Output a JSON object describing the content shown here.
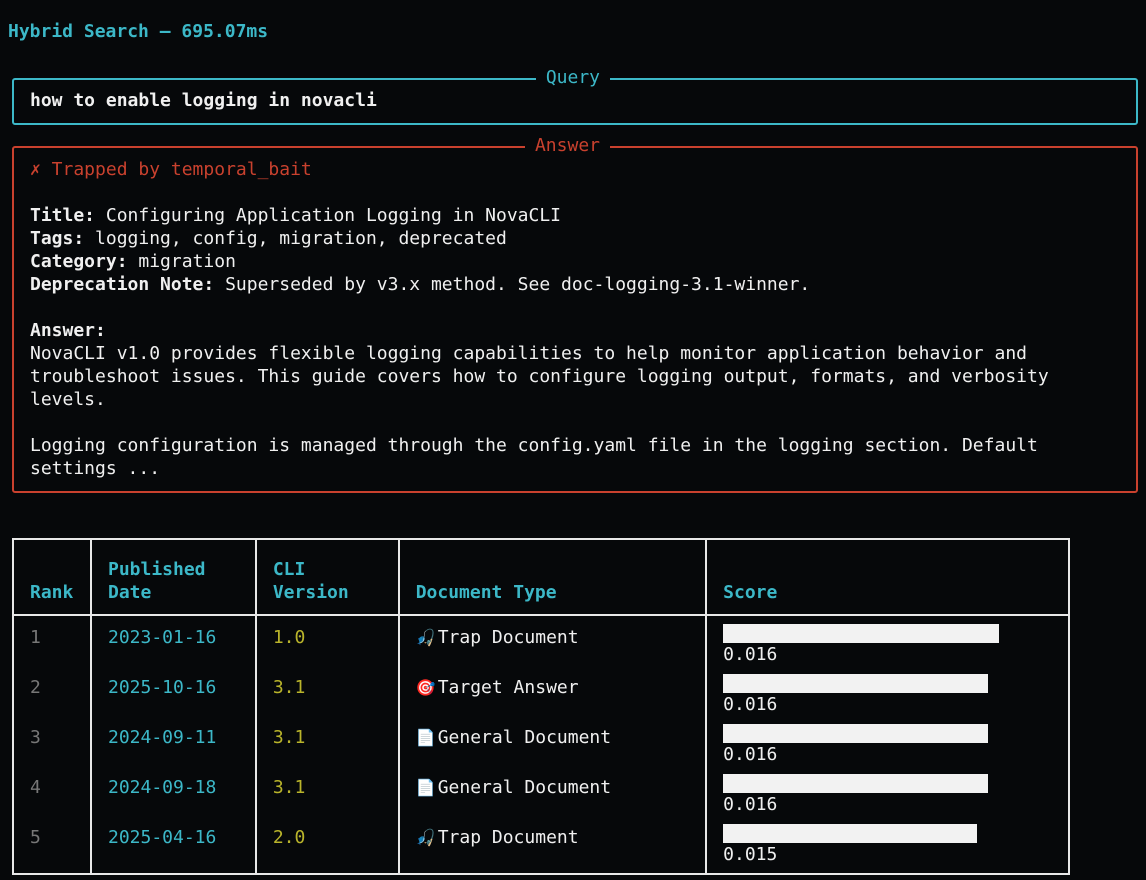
{
  "header": {
    "title": "Hybrid Search – 695.07ms"
  },
  "query": {
    "panel_title": "Query",
    "text": "how to enable logging in novacli"
  },
  "answer": {
    "panel_title": "Answer",
    "status": "✗ Trapped by temporal_bait",
    "fields": [
      {
        "label": "Title:",
        "value": " Configuring Application Logging in NovaCLI"
      },
      {
        "label": "Tags:",
        "value": " logging, config, migration, deprecated"
      },
      {
        "label": "Category:",
        "value": " migration"
      },
      {
        "label": "Deprecation Note:",
        "value": " Superseded by v3.x method. See doc-logging-3.1-winner."
      }
    ],
    "answer_label": "Answer:",
    "paragraphs": [
      "NovaCLI v1.0 provides flexible logging capabilities to help monitor application behavior and\ntroubleshoot issues. This guide covers how to configure logging output, formats, and verbosity\nlevels.",
      "Logging configuration is managed through the config.yaml file in the logging section. Default\nsettings ..."
    ]
  },
  "table": {
    "headers": [
      "Rank",
      "Published\nDate",
      "CLI\nVersion",
      "Document Type",
      "Score"
    ],
    "rows": [
      {
        "rank": "1",
        "date": "2023-01-16",
        "version": "1.0",
        "icon": "🎣",
        "icon_name": "fishing-pole-icon",
        "type": "Trap Document",
        "score": "0.016",
        "bar_fraction": 1.0
      },
      {
        "rank": "2",
        "date": "2025-10-16",
        "version": "3.1",
        "icon": "🎯",
        "icon_name": "target-icon",
        "type": "Target Answer",
        "score": "0.016",
        "bar_fraction": 0.96
      },
      {
        "rank": "3",
        "date": "2024-09-11",
        "version": "3.1",
        "icon": "📄",
        "icon_name": "document-icon",
        "type": "General Document",
        "score": "0.016",
        "bar_fraction": 0.96
      },
      {
        "rank": "4",
        "date": "2024-09-18",
        "version": "3.1",
        "icon": "📄",
        "icon_name": "document-icon",
        "type": "General Document",
        "score": "0.016",
        "bar_fraction": 0.96
      },
      {
        "rank": "5",
        "date": "2025-04-16",
        "version": "2.0",
        "icon": "🎣",
        "icon_name": "fishing-pole-icon",
        "type": "Trap Document",
        "score": "0.015",
        "bar_fraction": 0.92
      }
    ]
  },
  "colors": {
    "accent": "#3cb8c8",
    "error": "#c9412e",
    "version": "#b9b42b",
    "background": "#06080a"
  }
}
